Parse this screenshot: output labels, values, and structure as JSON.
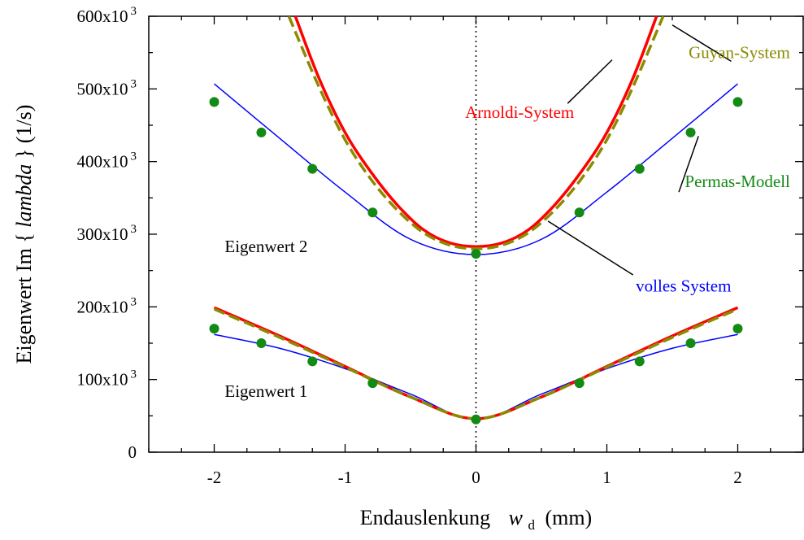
{
  "chart_data": {
    "type": "line",
    "xlabel": {
      "prefix": "Endauslenkung",
      "var": "w",
      "sub": "d",
      "suffix": "(mm)"
    },
    "ylabel": {
      "prefix": "Eigenwert  Im {",
      "var": "lambda",
      "suffix": "} (1/s)"
    },
    "xlim": [
      -2.5,
      2.5
    ],
    "ylim": [
      0,
      600000
    ],
    "xticks": [
      -2,
      -1,
      0,
      1,
      2
    ],
    "xtick_labels": [
      "-2",
      "-1",
      "0",
      "1",
      "2"
    ],
    "yticks": [
      0,
      100000,
      200000,
      300000,
      400000,
      500000,
      600000
    ],
    "ytick_labels": [
      "0",
      "100x10 3",
      "200x10 3",
      "300x10 3",
      "400x10 3",
      "500x10 3",
      "600x10 3"
    ],
    "grid": false,
    "vertical_reference_line_x": 0,
    "series": [
      {
        "name": "volles System",
        "color": "#0000ff",
        "style": "solid",
        "x": [
          -2.0,
          -1.5,
          -1.0,
          -0.5,
          0.0,
          0.5,
          1.0,
          1.5,
          2.0
        ],
        "y": [
          507000,
          432000,
          358000,
          293000,
          272000,
          293000,
          358000,
          432000,
          507000
        ]
      },
      {
        "name": "volles System",
        "color": "#0000ff",
        "style": "solid",
        "x": [
          -2.0,
          -1.5,
          -1.0,
          -0.5,
          0.0,
          0.5,
          1.0,
          1.5,
          2.0
        ],
        "y": [
          162000,
          143000,
          115000,
          80000,
          45000,
          80000,
          115000,
          143000,
          162000
        ]
      },
      {
        "name": "Arnoldi-System",
        "color": "#ff0000",
        "style": "solid",
        "x": [
          -1.38,
          -1.2,
          -1.0,
          -0.8,
          -0.6,
          -0.4,
          -0.2,
          0.0,
          0.2,
          0.4,
          0.6,
          0.8,
          1.0,
          1.2,
          1.38
        ],
        "y": [
          600000,
          515000,
          440000,
          385000,
          340000,
          306000,
          288000,
          283000,
          288000,
          306000,
          340000,
          385000,
          440000,
          515000,
          600000
        ]
      },
      {
        "name": "Arnoldi-System",
        "color": "#ff0000",
        "style": "solid",
        "x": [
          -2.0,
          -1.5,
          -1.0,
          -0.5,
          0.0,
          0.5,
          1.0,
          1.5,
          2.0
        ],
        "y": [
          199000,
          160000,
          118000,
          76000,
          46000,
          76000,
          118000,
          160000,
          199000
        ]
      },
      {
        "name": "Guyan-System",
        "color": "#8b8b00",
        "style": "dashed",
        "x": [
          -1.43,
          -1.2,
          -1.0,
          -0.8,
          -0.6,
          -0.4,
          -0.2,
          0.0,
          0.2,
          0.4,
          0.6,
          0.8,
          1.0,
          1.2,
          1.43
        ],
        "y": [
          600000,
          503000,
          430000,
          375000,
          333000,
          302000,
          285000,
          280000,
          285000,
          302000,
          333000,
          375000,
          430000,
          503000,
          600000
        ]
      },
      {
        "name": "Guyan-System",
        "color": "#8b8b00",
        "style": "dashed",
        "x": [
          -2.0,
          -1.5,
          -1.0,
          -0.5,
          0.0,
          0.5,
          1.0,
          1.5,
          2.0
        ],
        "y": [
          197000,
          158000,
          117000,
          76000,
          46000,
          76000,
          117000,
          158000,
          197000
        ]
      },
      {
        "name": "Permas-Modell",
        "color": "#138a13",
        "style": "points",
        "x": [
          -2.0,
          -1.64,
          -1.25,
          -0.79,
          0.0,
          0.79,
          1.25,
          1.64,
          2.0
        ],
        "y": [
          482000,
          440000,
          390000,
          330000,
          273000,
          330000,
          390000,
          440000,
          482000
        ]
      },
      {
        "name": "Permas-Modell",
        "color": "#138a13",
        "style": "points",
        "x": [
          -2.0,
          -1.64,
          -1.25,
          -0.79,
          0.0,
          0.79,
          1.25,
          1.64,
          2.0
        ],
        "y": [
          170000,
          150000,
          125000,
          95000,
          45000,
          95000,
          125000,
          150000,
          170000
        ]
      }
    ],
    "annotations": [
      {
        "text": "Arnoldi-System",
        "color": "#ff0000",
        "x": 0.75,
        "y": 468000,
        "anchor": "end",
        "pointer": [
          0.7,
          480000,
          1.04,
          540000
        ]
      },
      {
        "text": "Guyan-System",
        "color": "#8b8b00",
        "x": 2.4,
        "y": 550000,
        "anchor": "end",
        "pointer": [
          1.95,
          538000,
          1.5,
          588000
        ]
      },
      {
        "text": "Permas-Modell",
        "color": "#138a13",
        "x": 2.4,
        "y": 373000,
        "anchor": "end",
        "pointer": [
          1.55,
          358000,
          1.7,
          435000
        ]
      },
      {
        "text": "volles System",
        "color": "#0000ff",
        "x": 1.95,
        "y": 229000,
        "anchor": "end",
        "pointer": [
          1.2,
          244000,
          0.55,
          318000
        ]
      },
      {
        "text": "Eigenwert 2",
        "color": "#000000",
        "x": -1.92,
        "y": 283000,
        "anchor": "start"
      },
      {
        "text": "Eigenwert 1",
        "color": "#000000",
        "x": -1.92,
        "y": 84000,
        "anchor": "start"
      }
    ]
  }
}
